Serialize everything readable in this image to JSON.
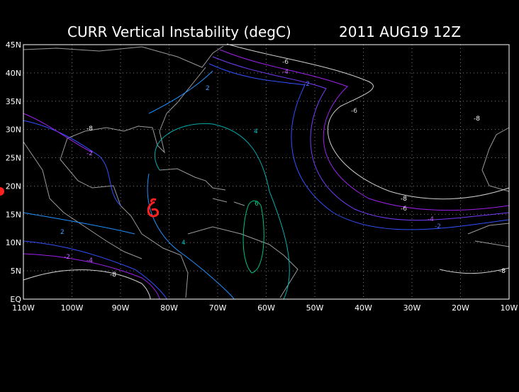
{
  "title": "CURR Vertical Instability (degC)",
  "valid_time": "2011 AUG19 12Z",
  "lon_labels": [
    "110W",
    "100W",
    "90W",
    "80W",
    "70W",
    "60W",
    "50W",
    "40W",
    "30W",
    "20W",
    "10W"
  ],
  "lat_labels": [
    "45N",
    "40N",
    "35N",
    "30N",
    "25N",
    "20N",
    "15N",
    "10N",
    "5N",
    "EQ"
  ],
  "contour_labels": [
    "-6",
    "-4",
    "-2",
    "2",
    "-8",
    "-2",
    "4",
    "-8",
    "-6",
    "-4",
    "-2",
    "6",
    "4",
    "2",
    "-2",
    "-4",
    "-8",
    "-6",
    "-8",
    "-8"
  ]
}
